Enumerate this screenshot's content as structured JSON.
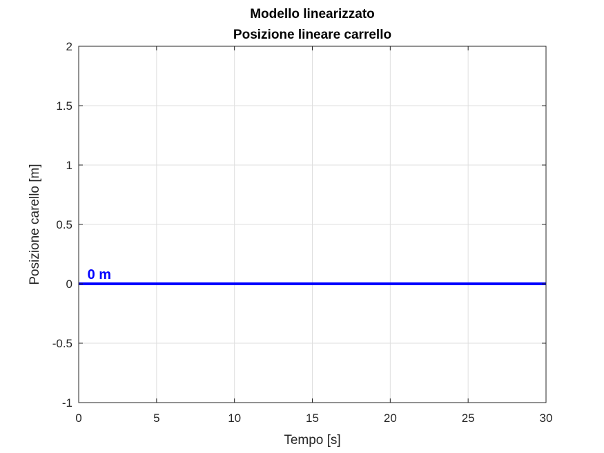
{
  "chart_data": {
    "type": "line",
    "title": "Modello linearizzato",
    "subtitle": "Posizione lineare carrello",
    "xlabel": "Tempo [s]",
    "ylabel": "Posizione carello [m]",
    "xlim": [
      0,
      30
    ],
    "ylim": [
      -1,
      2
    ],
    "xticks": [
      0,
      5,
      10,
      15,
      20,
      25,
      30
    ],
    "yticks": [
      -1,
      -0.5,
      0,
      0.5,
      1,
      1.5,
      2
    ],
    "xtick_labels": [
      "0",
      "5",
      "10",
      "15",
      "20",
      "25",
      "30"
    ],
    "ytick_labels": [
      "-1",
      "-0.5",
      "0",
      "0.5",
      "1",
      "1.5",
      "2"
    ],
    "grid": true,
    "series": [
      {
        "color": "#0000ff",
        "x": [
          0,
          30
        ],
        "y": [
          0,
          0
        ]
      }
    ],
    "annotations": [
      {
        "text": "0 m",
        "x": 1,
        "y": 0.08,
        "color": "#0000ff"
      }
    ]
  }
}
